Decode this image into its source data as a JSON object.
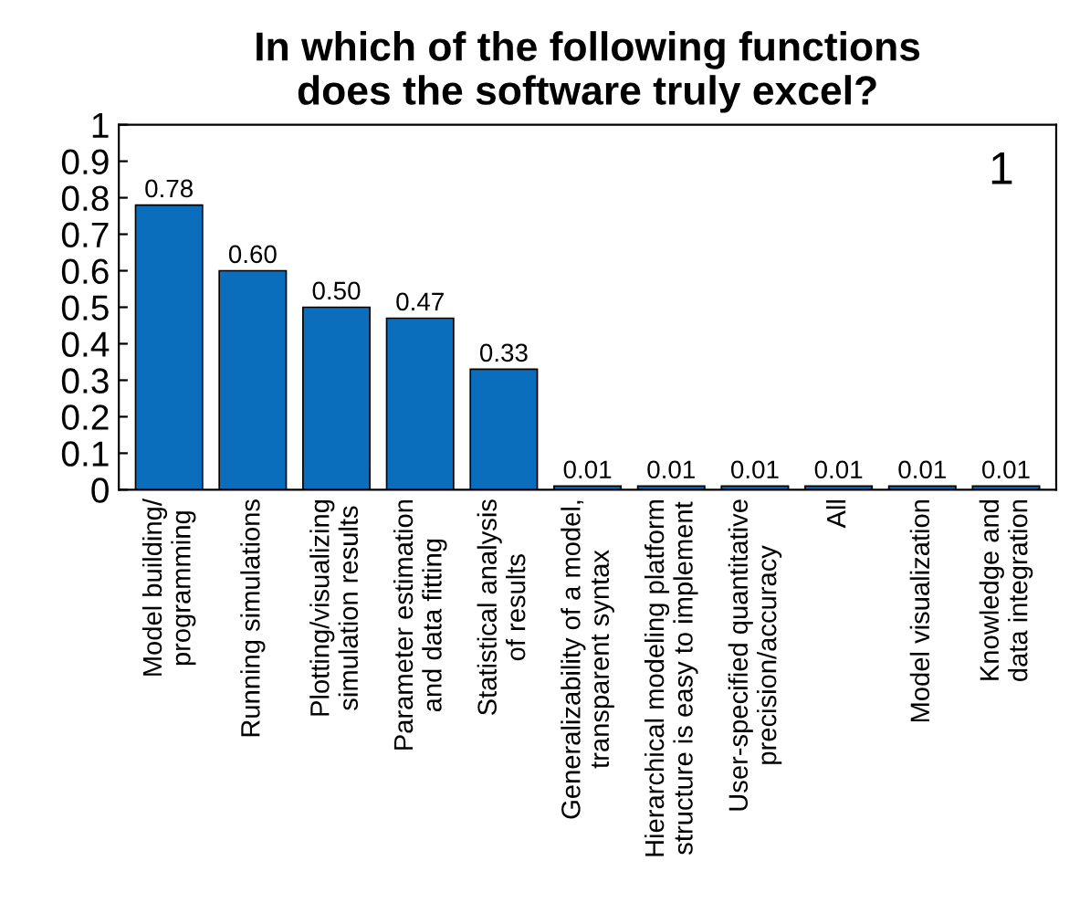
{
  "chart_data": {
    "type": "bar",
    "title": "In which of the following functions\ndoes the software truly excel?",
    "categories": [
      "Model building/\nprogramming",
      "Running simulations",
      "Plotting/visualizing\nsimulation results",
      "Parameter estimation\nand data fitting",
      "Statistical analysis\nof results",
      "Generalizability of a model,\ntransparent syntax",
      "Hierarchical modeling platform\nstructure is easy to implement",
      "User-specified quantitative\nprecision/accuracy",
      "All",
      "Model visualization",
      "Knowledge and\ndata integration"
    ],
    "values": [
      0.78,
      0.6,
      0.5,
      0.47,
      0.33,
      0.01,
      0.01,
      0.01,
      0.01,
      0.01,
      0.01
    ],
    "value_labels": [
      "0.78",
      "0.60",
      "0.50",
      "0.47",
      "0.33",
      "0.01",
      "0.01",
      "0.01",
      "0.01",
      "0.01",
      "0.01"
    ],
    "color": "#0a6ebd",
    "ylim": [
      0,
      1
    ],
    "yticks": [
      0,
      0.1,
      0.2,
      0.3,
      0.4,
      0.5,
      0.6,
      0.7,
      0.8,
      0.9,
      1
    ],
    "annotations": [
      "1"
    ],
    "grid": false
  }
}
